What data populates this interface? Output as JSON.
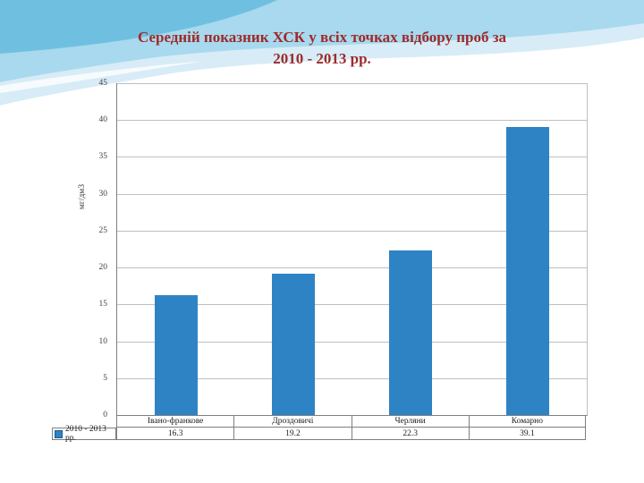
{
  "slide": {
    "title_line1": "Середній показник ХСК у всіх точках відбору проб за",
    "title_line2": "2010 - 2013 рр.",
    "title_color": "#9e2a2a"
  },
  "chart_data": {
    "type": "bar",
    "title": "Середній показник ХСК у всіх точках відбору проб за 2010 - 2013 рр.",
    "categories": [
      "Івано-франкове",
      "Дроздовичі",
      "Черляни",
      "Комарно"
    ],
    "series": [
      {
        "name": "2010 - 2013 рр.",
        "values": [
          16.3,
          19.2,
          22.3,
          39.1
        ]
      }
    ],
    "xlabel": "",
    "ylabel": "мг/дм3",
    "ylim": [
      0,
      45
    ],
    "ytick_step": 5,
    "grid": true,
    "bar_color": "#2e83c5",
    "legend_position": "bottom-left-table"
  },
  "table": {
    "legend_label": "2010 - 2013 рр.",
    "values_display": [
      "16.3",
      "19.2",
      "22.3",
      "39.1"
    ]
  }
}
